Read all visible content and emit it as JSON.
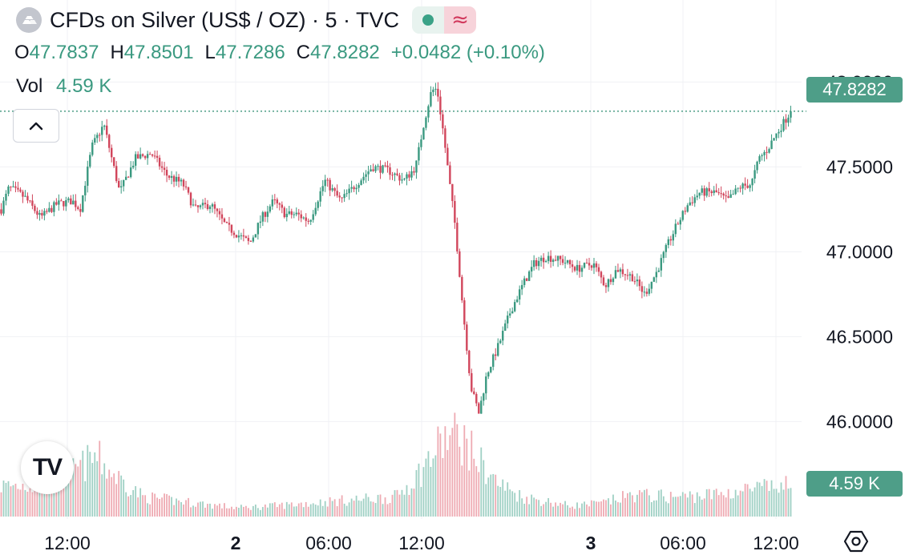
{
  "header": {
    "title": "CFDs on Silver (US$ / OZ) · 5 · TVC",
    "market_status": "≈"
  },
  "ohlc": {
    "o_label": "O",
    "o_value": "47.7837",
    "h_label": "H",
    "h_value": "47.8501",
    "l_label": "L",
    "l_value": "47.7286",
    "c_label": "C",
    "c_value": "47.8282",
    "change": "+0.0482 (+0.10%)"
  },
  "volume": {
    "label": "Vol",
    "value": "4.59 K"
  },
  "logo_text": "TV",
  "last_price_tag": "47.8282",
  "last_volume_tag": "4.59 K",
  "colors": {
    "up": "#3a9980",
    "down": "#d1455b",
    "up_vol": "#9fd0c4",
    "down_vol": "#eeaab2",
    "grid": "#f0f1f4"
  },
  "chart_data": {
    "type": "candlestick",
    "title": "CFDs on Silver (US$ / OZ) · 5 · TVC",
    "ylim": [
      45.7,
      48.2
    ],
    "y_ticks": [
      "48.0000",
      "47.5000",
      "47.0000",
      "46.5000",
      "46.0000"
    ],
    "x_ticks": [
      "12:00",
      "2",
      "06:00",
      "12:00",
      "3",
      "06:00",
      "12:00"
    ],
    "x_tick_bold": [
      false,
      true,
      false,
      false,
      true,
      false,
      false
    ],
    "last_price": 47.8282,
    "price_path": [
      [
        0,
        47.25
      ],
      [
        0.01,
        47.38
      ],
      [
        0.03,
        47.32
      ],
      [
        0.05,
        47.2
      ],
      [
        0.07,
        47.28
      ],
      [
        0.09,
        47.3
      ],
      [
        0.1,
        47.25
      ],
      [
        0.115,
        47.62
      ],
      [
        0.13,
        47.75
      ],
      [
        0.15,
        47.35
      ],
      [
        0.17,
        47.55
      ],
      [
        0.19,
        47.58
      ],
      [
        0.21,
        47.45
      ],
      [
        0.23,
        47.4
      ],
      [
        0.245,
        47.25
      ],
      [
        0.265,
        47.28
      ],
      [
        0.285,
        47.15
      ],
      [
        0.3,
        47.1
      ],
      [
        0.315,
        47.05
      ],
      [
        0.33,
        47.2
      ],
      [
        0.345,
        47.3
      ],
      [
        0.36,
        47.22
      ],
      [
        0.375,
        47.22
      ],
      [
        0.39,
        47.18
      ],
      [
        0.41,
        47.42
      ],
      [
        0.43,
        47.3
      ],
      [
        0.45,
        47.4
      ],
      [
        0.47,
        47.5
      ],
      [
        0.49,
        47.48
      ],
      [
        0.51,
        47.42
      ],
      [
        0.525,
        47.5
      ],
      [
        0.535,
        47.75
      ],
      [
        0.545,
        47.95
      ],
      [
        0.552,
        47.96
      ],
      [
        0.56,
        47.7
      ],
      [
        0.568,
        47.4
      ],
      [
        0.575,
        47.15
      ],
      [
        0.585,
        46.65
      ],
      [
        0.595,
        46.2
      ],
      [
        0.605,
        46.05
      ],
      [
        0.615,
        46.28
      ],
      [
        0.63,
        46.45
      ],
      [
        0.645,
        46.65
      ],
      [
        0.66,
        46.8
      ],
      [
        0.675,
        46.93
      ],
      [
        0.69,
        46.97
      ],
      [
        0.71,
        46.95
      ],
      [
        0.73,
        46.9
      ],
      [
        0.75,
        46.93
      ],
      [
        0.765,
        46.8
      ],
      [
        0.78,
        46.9
      ],
      [
        0.8,
        46.85
      ],
      [
        0.815,
        46.75
      ],
      [
        0.83,
        46.88
      ],
      [
        0.845,
        47.05
      ],
      [
        0.855,
        47.15
      ],
      [
        0.87,
        47.28
      ],
      [
        0.885,
        47.35
      ],
      [
        0.905,
        47.35
      ],
      [
        0.92,
        47.3
      ],
      [
        0.935,
        47.38
      ],
      [
        0.95,
        47.4
      ],
      [
        0.96,
        47.55
      ],
      [
        0.97,
        47.6
      ],
      [
        0.98,
        47.68
      ],
      [
        1.0,
        47.8282
      ]
    ],
    "volume_path": [
      [
        0,
        0.28
      ],
      [
        0.06,
        0.3
      ],
      [
        0.1,
        0.45
      ],
      [
        0.12,
        0.55
      ],
      [
        0.14,
        0.4
      ],
      [
        0.18,
        0.18
      ],
      [
        0.25,
        0.12
      ],
      [
        0.3,
        0.08
      ],
      [
        0.35,
        0.1
      ],
      [
        0.42,
        0.14
      ],
      [
        0.5,
        0.18
      ],
      [
        0.53,
        0.4
      ],
      [
        0.56,
        0.7
      ],
      [
        0.58,
        0.75
      ],
      [
        0.6,
        0.55
      ],
      [
        0.63,
        0.3
      ],
      [
        0.66,
        0.18
      ],
      [
        0.72,
        0.1
      ],
      [
        0.76,
        0.12
      ],
      [
        0.8,
        0.2
      ],
      [
        0.85,
        0.18
      ],
      [
        0.9,
        0.2
      ],
      [
        0.95,
        0.25
      ],
      [
        1.0,
        0.28
      ]
    ],
    "volume_max": 1.0
  }
}
